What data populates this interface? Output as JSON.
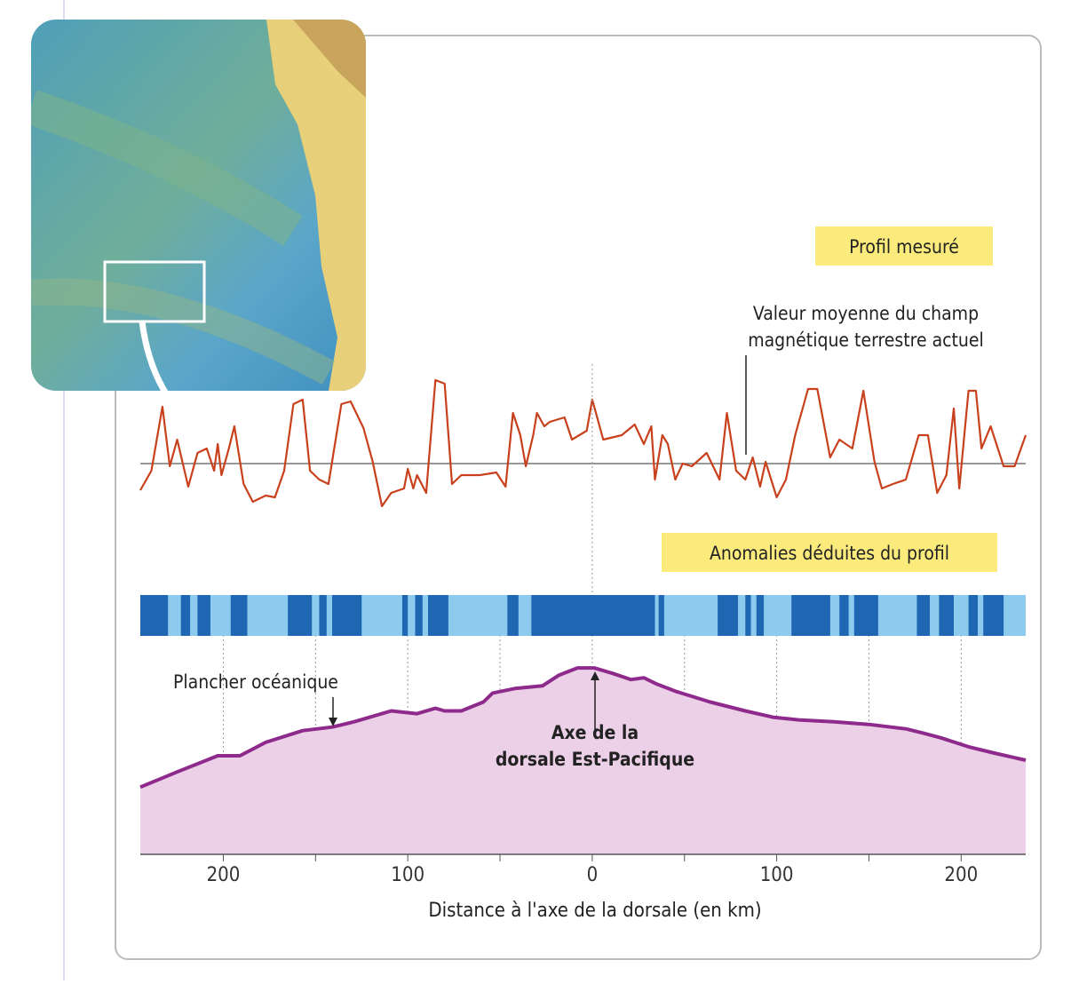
{
  "chart_data": {
    "type": "profile",
    "xlabel": "Distance à l'axe de la dorsale (en km)",
    "xlim": [
      -245,
      235
    ],
    "xticks": [
      {
        "value": -200,
        "label": "200"
      },
      {
        "value": -100,
        "label": "100"
      },
      0,
      100,
      {
        "value": 200,
        "label": "200"
      }
    ],
    "xminorticks": [
      -150,
      -50,
      50,
      150
    ],
    "magnetic": {
      "name": "Profil mesuré",
      "color": "#c8401c",
      "ylim": [
        -5.8,
        9.7
      ],
      "mean": 0,
      "mean_color": "#777777",
      "mean_label": [
        "Valeur moyenne du champ",
        "magnétique terrestre actuel"
      ],
      "x": [
        -245,
        -239,
        -233,
        -229,
        -225,
        -219,
        -214,
        -209,
        -205,
        -203,
        -201,
        -197,
        -194,
        -189,
        -184,
        -181,
        -177,
        -172,
        -167,
        -162,
        -157,
        -153,
        -148,
        -143,
        -136,
        -131,
        -124,
        -119,
        -114,
        -109,
        -102,
        -100,
        -97,
        -95,
        -90,
        -85,
        -80,
        -76,
        -71,
        -61,
        -52,
        -47,
        -43,
        -39,
        -36,
        -32,
        -30,
        -26,
        -23,
        -15,
        -11,
        -3,
        0,
        6,
        16,
        23,
        28,
        32,
        34,
        38,
        41,
        45,
        49,
        54,
        62,
        69,
        73,
        78,
        83,
        87,
        91,
        94,
        100,
        105,
        110,
        117,
        122,
        129,
        134,
        141,
        147,
        153,
        157,
        163,
        170,
        177,
        182,
        187,
        192,
        196,
        199,
        204,
        208,
        211,
        216,
        223,
        229,
        235
      ],
      "values": [
        -3,
        -0.8,
        6.4,
        -0.3,
        2.7,
        -2.6,
        1.2,
        1.7,
        -0.8,
        2.2,
        -1.3,
        1.7,
        4.2,
        -2.3,
        -4.3,
        -4,
        -3.6,
        -3.8,
        -0.8,
        6.7,
        7.2,
        -0.8,
        -1.8,
        -2.3,
        6.7,
        7,
        4,
        0.2,
        -4.8,
        -3.3,
        -2.8,
        -0.6,
        -2.8,
        -1.3,
        -3.3,
        9.4,
        9,
        -2.3,
        -1.3,
        -1.3,
        -1,
        -2.6,
        5.7,
        3.2,
        -0.3,
        3.2,
        5.7,
        4.2,
        4.7,
        5.2,
        2.7,
        3.7,
        7.2,
        2.7,
        3.2,
        4.4,
        2.2,
        4.2,
        -1.8,
        3.2,
        2.2,
        -1.8,
        0,
        -0.3,
        1.2,
        -1.8,
        5.7,
        -0.8,
        -1.8,
        0.7,
        -2.6,
        0.2,
        -3.8,
        -1.8,
        3.2,
        8.4,
        8.4,
        0.7,
        2.7,
        1.7,
        8.2,
        0.2,
        -2.8,
        -2.3,
        -1.8,
        3.2,
        3.2,
        -3.3,
        -1.3,
        6.2,
        -2.8,
        8.2,
        8.2,
        1.7,
        4.2,
        -0.3,
        -0.3,
        3.2
      ]
    },
    "anomalies": {
      "name": "Anomalies déduites du profil",
      "color": "#1f66b3",
      "background": "#8ccbee",
      "normal": [
        [
          -245,
          -230
        ],
        [
          -223,
          -218
        ],
        [
          -214,
          -207
        ],
        [
          -196,
          -187
        ],
        [
          -165,
          -152
        ],
        [
          -148,
          -144
        ],
        [
          -141,
          -125
        ],
        [
          -103,
          -100
        ],
        [
          -96,
          -92
        ],
        [
          -89,
          -78
        ],
        [
          -46,
          -40
        ],
        [
          -33,
          34
        ],
        [
          36,
          39
        ],
        [
          68,
          79
        ],
        [
          83,
          86
        ],
        [
          89,
          93
        ],
        [
          108,
          129
        ],
        [
          134,
          139
        ],
        [
          142,
          155
        ],
        [
          176,
          183
        ],
        [
          188,
          196
        ],
        [
          204,
          209
        ],
        [
          212,
          223
        ]
      ]
    },
    "floor": {
      "name": "Plancher océanique",
      "color": "#8e2a8c",
      "fill": "#ecd0e8",
      "ylim": [
        -6,
        16
      ],
      "x": [
        -245,
        -225,
        -203,
        -191,
        -177,
        -157,
        -141,
        -129,
        -109,
        -95,
        -85,
        -80,
        -71,
        -59,
        -54,
        -42,
        -27,
        -18,
        -8,
        1,
        11,
        21,
        28,
        35,
        45,
        64,
        83,
        98,
        112,
        131,
        150,
        170,
        180,
        189,
        204,
        218,
        235
      ],
      "values": [
        1.5,
        3.2,
        5,
        5,
        6.5,
        7.8,
        8.2,
        8.8,
        10,
        9.7,
        10.3,
        10,
        10,
        11,
        12,
        12.5,
        12.8,
        14,
        14.8,
        14.8,
        14.2,
        13.5,
        13.7,
        13,
        12.2,
        11,
        10,
        9.3,
        9,
        8.8,
        8.5,
        8,
        7.5,
        7,
        6,
        5.3,
        4.5
      ]
    },
    "axis_label": [
      "Axe de la",
      "dorsale Est-Pacifique"
    ],
    "axis_label_color": "#8e2a8c"
  }
}
